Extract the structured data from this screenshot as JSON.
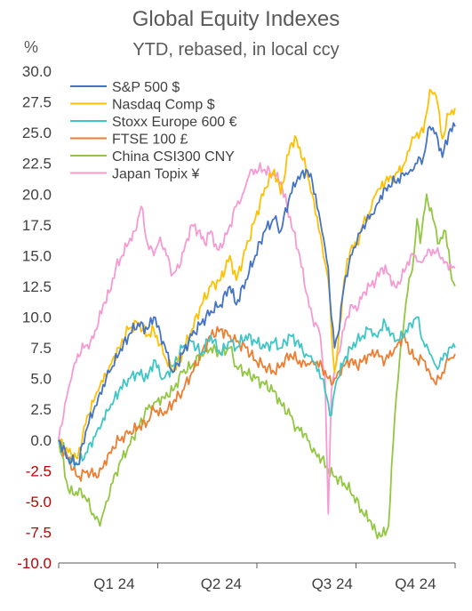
{
  "header": {
    "title": "Global Equity Indexes",
    "subtitle": "YTD, rebased, in local ccy",
    "unit": "%"
  },
  "colors": {
    "negative_tick": "#c00000",
    "positive_tick": "#404040",
    "axis": "#595959"
  },
  "chart_data": {
    "type": "line",
    "title": "Global Equity Indexes",
    "subtitle": "YTD, rebased, in local ccy",
    "ylabel": "%",
    "xlabel": "",
    "ylim": [
      -10,
      30
    ],
    "xlim": [
      0,
      250
    ],
    "yticks": [
      "30.0",
      "27.5",
      "25.0",
      "22.5",
      "20.0",
      "17.5",
      "15.0",
      "12.5",
      "10.0",
      "7.5",
      "5.0",
      "2.5",
      "0.0",
      "-2.5",
      "-5.0",
      "-7.5",
      "-10.0"
    ],
    "xticks": [
      "Q1 24",
      "Q2 24",
      "Q3 24",
      "Q4 24"
    ],
    "grid": false,
    "legend": "top-left",
    "x_unit": "trading days since start of year",
    "series": [
      {
        "name": "S&P 500 $",
        "color": "#4472c4",
        "points": [
          [
            0,
            0
          ],
          [
            6,
            -1.5
          ],
          [
            12,
            -2
          ],
          [
            18,
            1
          ],
          [
            25,
            3.5
          ],
          [
            32,
            5.5
          ],
          [
            38,
            7
          ],
          [
            44,
            8.5
          ],
          [
            50,
            9.5
          ],
          [
            56,
            9
          ],
          [
            60,
            10
          ],
          [
            66,
            8
          ],
          [
            72,
            5.5
          ],
          [
            78,
            7
          ],
          [
            84,
            8.5
          ],
          [
            90,
            9.5
          ],
          [
            96,
            10.5
          ],
          [
            102,
            11
          ],
          [
            108,
            12.5
          ],
          [
            112,
            11
          ],
          [
            118,
            13
          ],
          [
            124,
            15
          ],
          [
            130,
            17
          ],
          [
            136,
            18
          ],
          [
            140,
            17
          ],
          [
            146,
            20
          ],
          [
            150,
            21
          ],
          [
            156,
            22
          ],
          [
            160,
            21
          ],
          [
            166,
            17
          ],
          [
            170,
            14
          ],
          [
            172,
            10
          ],
          [
            174,
            7.5
          ],
          [
            176,
            8.5
          ],
          [
            180,
            12.5
          ],
          [
            184,
            15
          ],
          [
            188,
            16
          ],
          [
            192,
            17.5
          ],
          [
            196,
            18
          ],
          [
            200,
            19
          ],
          [
            206,
            20.5
          ],
          [
            212,
            21
          ],
          [
            218,
            21.5
          ],
          [
            222,
            22
          ],
          [
            226,
            22.5
          ],
          [
            230,
            23
          ],
          [
            234,
            25.5
          ],
          [
            238,
            25
          ],
          [
            242,
            23
          ],
          [
            246,
            25
          ],
          [
            250,
            25.5
          ]
        ]
      },
      {
        "name": "Nasdaq Comp $",
        "color": "#ffc000",
        "points": [
          [
            0,
            0
          ],
          [
            6,
            -1
          ],
          [
            12,
            -1.5
          ],
          [
            18,
            2
          ],
          [
            25,
            4
          ],
          [
            32,
            6
          ],
          [
            38,
            7.5
          ],
          [
            44,
            9
          ],
          [
            50,
            9.5
          ],
          [
            56,
            8.5
          ],
          [
            60,
            9
          ],
          [
            66,
            7
          ],
          [
            72,
            5.5
          ],
          [
            78,
            7
          ],
          [
            84,
            9
          ],
          [
            90,
            11
          ],
          [
            96,
            12.5
          ],
          [
            102,
            13
          ],
          [
            108,
            15
          ],
          [
            112,
            13
          ],
          [
            118,
            15.5
          ],
          [
            124,
            18
          ],
          [
            130,
            20.5
          ],
          [
            136,
            22
          ],
          [
            140,
            20
          ],
          [
            146,
            24
          ],
          [
            150,
            24.5
          ],
          [
            156,
            22
          ],
          [
            160,
            20
          ],
          [
            166,
            16
          ],
          [
            170,
            13
          ],
          [
            172,
            9
          ],
          [
            174,
            5.5
          ],
          [
            176,
            7.5
          ],
          [
            180,
            13
          ],
          [
            184,
            15.5
          ],
          [
            188,
            16
          ],
          [
            192,
            17.5
          ],
          [
            196,
            18.5
          ],
          [
            200,
            20
          ],
          [
            206,
            21
          ],
          [
            212,
            21.5
          ],
          [
            218,
            22.5
          ],
          [
            222,
            24
          ],
          [
            226,
            25
          ],
          [
            230,
            25
          ],
          [
            234,
            28.5
          ],
          [
            238,
            28
          ],
          [
            242,
            24.5
          ],
          [
            246,
            26.5
          ],
          [
            250,
            27
          ]
        ]
      },
      {
        "name": "Stoxx Europe 600 €",
        "color": "#3ec6c6",
        "points": [
          [
            0,
            0
          ],
          [
            6,
            -1.5
          ],
          [
            12,
            -2
          ],
          [
            18,
            -1
          ],
          [
            25,
            1
          ],
          [
            32,
            2.5
          ],
          [
            38,
            4
          ],
          [
            44,
            5
          ],
          [
            50,
            5.5
          ],
          [
            56,
            5
          ],
          [
            60,
            6.5
          ],
          [
            66,
            5
          ],
          [
            72,
            6
          ],
          [
            78,
            7.5
          ],
          [
            84,
            8
          ],
          [
            90,
            7
          ],
          [
            96,
            8.5
          ],
          [
            102,
            7
          ],
          [
            108,
            8
          ],
          [
            112,
            7.5
          ],
          [
            118,
            8.5
          ],
          [
            124,
            8
          ],
          [
            130,
            7.5
          ],
          [
            136,
            8
          ],
          [
            140,
            7.5
          ],
          [
            146,
            8.5
          ],
          [
            150,
            8
          ],
          [
            156,
            7
          ],
          [
            160,
            6.5
          ],
          [
            166,
            5
          ],
          [
            170,
            3
          ],
          [
            172,
            2
          ],
          [
            174,
            4
          ],
          [
            176,
            5
          ],
          [
            180,
            6.5
          ],
          [
            184,
            7.5
          ],
          [
            188,
            8
          ],
          [
            192,
            8.5
          ],
          [
            196,
            9
          ],
          [
            200,
            8.5
          ],
          [
            206,
            9.5
          ],
          [
            212,
            8
          ],
          [
            218,
            8.5
          ],
          [
            222,
            9.5
          ],
          [
            226,
            10
          ],
          [
            230,
            8
          ],
          [
            234,
            7
          ],
          [
            238,
            6
          ],
          [
            242,
            6.5
          ],
          [
            246,
            7.5
          ],
          [
            250,
            7.5
          ]
        ]
      },
      {
        "name": "FTSE 100 £",
        "color": "#ed7d31",
        "points": [
          [
            0,
            0
          ],
          [
            6,
            -1.5
          ],
          [
            12,
            -3
          ],
          [
            18,
            -2.5
          ],
          [
            25,
            -3
          ],
          [
            32,
            -1
          ],
          [
            38,
            0
          ],
          [
            44,
            0.5
          ],
          [
            50,
            1
          ],
          [
            56,
            1.5
          ],
          [
            60,
            2.5
          ],
          [
            66,
            2
          ],
          [
            72,
            3
          ],
          [
            78,
            4
          ],
          [
            84,
            5.5
          ],
          [
            90,
            7
          ],
          [
            96,
            8.5
          ],
          [
            102,
            9
          ],
          [
            108,
            8.5
          ],
          [
            112,
            8
          ],
          [
            118,
            7.5
          ],
          [
            124,
            6.5
          ],
          [
            130,
            6
          ],
          [
            136,
            5.5
          ],
          [
            140,
            6
          ],
          [
            146,
            7
          ],
          [
            150,
            6.5
          ],
          [
            156,
            6
          ],
          [
            160,
            6.5
          ],
          [
            166,
            6
          ],
          [
            170,
            5
          ],
          [
            172,
            4.5
          ],
          [
            174,
            5
          ],
          [
            176,
            5.5
          ],
          [
            180,
            6
          ],
          [
            184,
            6.5
          ],
          [
            188,
            6
          ],
          [
            192,
            6.5
          ],
          [
            196,
            7
          ],
          [
            200,
            7
          ],
          [
            206,
            6.5
          ],
          [
            212,
            7.5
          ],
          [
            218,
            8.5
          ],
          [
            222,
            7
          ],
          [
            226,
            6.5
          ],
          [
            230,
            6.5
          ],
          [
            234,
            5.5
          ],
          [
            238,
            4.5
          ],
          [
            242,
            5.5
          ],
          [
            246,
            6.5
          ],
          [
            250,
            7
          ]
        ]
      },
      {
        "name": "China CSI300 CNY",
        "color": "#92c741",
        "points": [
          [
            0,
            0
          ],
          [
            6,
            -4
          ],
          [
            10,
            -4.5
          ],
          [
            14,
            -4
          ],
          [
            18,
            -5
          ],
          [
            22,
            -6
          ],
          [
            26,
            -7
          ],
          [
            30,
            -5
          ],
          [
            34,
            -3.5
          ],
          [
            38,
            -2
          ],
          [
            44,
            -0.5
          ],
          [
            50,
            1
          ],
          [
            56,
            2.5
          ],
          [
            60,
            3
          ],
          [
            66,
            3.5
          ],
          [
            72,
            4
          ],
          [
            78,
            5.5
          ],
          [
            84,
            6
          ],
          [
            90,
            7
          ],
          [
            96,
            7.5
          ],
          [
            102,
            7
          ],
          [
            108,
            7.5
          ],
          [
            112,
            6
          ],
          [
            118,
            5.5
          ],
          [
            124,
            5
          ],
          [
            130,
            4.5
          ],
          [
            136,
            4
          ],
          [
            140,
            3
          ],
          [
            146,
            2
          ],
          [
            150,
            1
          ],
          [
            156,
            0.5
          ],
          [
            160,
            -1
          ],
          [
            166,
            -1.5
          ],
          [
            170,
            -2.5
          ],
          [
            174,
            -3
          ],
          [
            180,
            -3.5
          ],
          [
            186,
            -4.5
          ],
          [
            192,
            -6
          ],
          [
            196,
            -6.5
          ],
          [
            200,
            -7.5
          ],
          [
            204,
            -7.8
          ],
          [
            208,
            -7
          ],
          [
            212,
            2
          ],
          [
            216,
            8
          ],
          [
            220,
            12
          ],
          [
            224,
            15
          ],
          [
            226,
            18
          ],
          [
            228,
            16
          ],
          [
            232,
            20
          ],
          [
            236,
            18
          ],
          [
            240,
            16
          ],
          [
            244,
            17
          ],
          [
            248,
            13
          ],
          [
            250,
            12.5
          ]
        ]
      },
      {
        "name": "Japan Topix ¥",
        "color": "#f59ad2",
        "points": [
          [
            0,
            0
          ],
          [
            4,
            3
          ],
          [
            8,
            5
          ],
          [
            12,
            7
          ],
          [
            16,
            7.5
          ],
          [
            20,
            8
          ],
          [
            24,
            9
          ],
          [
            28,
            11
          ],
          [
            32,
            12
          ],
          [
            36,
            14
          ],
          [
            40,
            15
          ],
          [
            44,
            16
          ],
          [
            48,
            17
          ],
          [
            52,
            19
          ],
          [
            56,
            16
          ],
          [
            60,
            15
          ],
          [
            64,
            16.5
          ],
          [
            68,
            15
          ],
          [
            72,
            13.5
          ],
          [
            76,
            14
          ],
          [
            80,
            16
          ],
          [
            84,
            17.5
          ],
          [
            88,
            17
          ],
          [
            92,
            16
          ],
          [
            96,
            17
          ],
          [
            100,
            15.5
          ],
          [
            104,
            16
          ],
          [
            108,
            17.5
          ],
          [
            112,
            19
          ],
          [
            116,
            20
          ],
          [
            120,
            21.5
          ],
          [
            124,
            22
          ],
          [
            130,
            22
          ],
          [
            136,
            21.5
          ],
          [
            140,
            21
          ],
          [
            144,
            19
          ],
          [
            148,
            17
          ],
          [
            152,
            15
          ],
          [
            156,
            12
          ],
          [
            160,
            10
          ],
          [
            164,
            9
          ],
          [
            166,
            7
          ],
          [
            168,
            5
          ],
          [
            170,
            -6
          ],
          [
            172,
            4
          ],
          [
            176,
            7
          ],
          [
            180,
            9
          ],
          [
            184,
            11
          ],
          [
            188,
            10.5
          ],
          [
            192,
            12
          ],
          [
            196,
            12.5
          ],
          [
            200,
            13
          ],
          [
            204,
            14
          ],
          [
            208,
            13.5
          ],
          [
            212,
            12.5
          ],
          [
            216,
            13
          ],
          [
            220,
            14.5
          ],
          [
            224,
            15
          ],
          [
            228,
            14.5
          ],
          [
            232,
            15
          ],
          [
            236,
            15.5
          ],
          [
            240,
            15
          ],
          [
            244,
            14.5
          ],
          [
            248,
            14
          ],
          [
            250,
            14
          ]
        ]
      }
    ]
  }
}
